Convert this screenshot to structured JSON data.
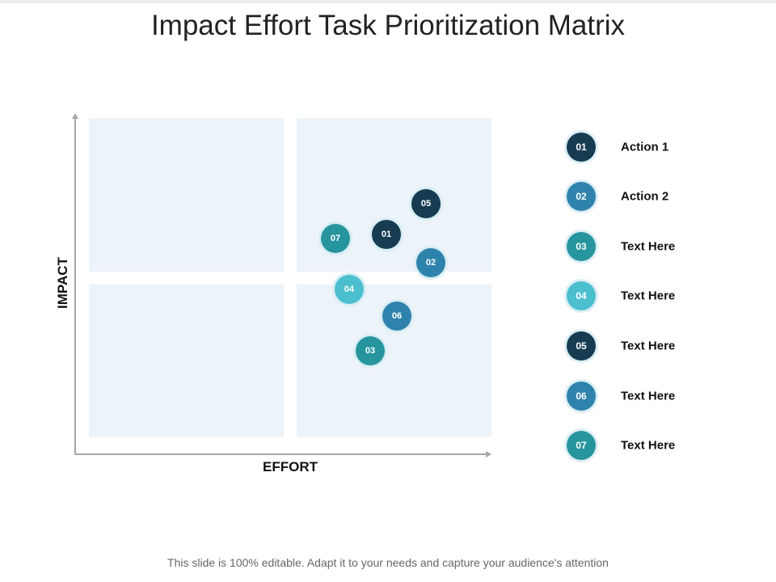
{
  "title": "Impact Effort Task Prioritization Matrix",
  "axes": {
    "y_label": "IMPACT",
    "x_label": "EFFORT"
  },
  "bubbles": [
    "05",
    "01",
    "07",
    "02",
    "04",
    "06",
    "03"
  ],
  "legend": [
    {
      "num": "01",
      "label": "Action 1"
    },
    {
      "num": "02",
      "label": "Action 2"
    },
    {
      "num": "03",
      "label": "Text Here"
    },
    {
      "num": "04",
      "label": "Text Here"
    },
    {
      "num": "05",
      "label": "Text Here"
    },
    {
      "num": "06",
      "label": "Text Here"
    },
    {
      "num": "07",
      "label": "Text Here"
    }
  ],
  "colors": {
    "dark": "#173c52",
    "blue": "#2e83ad",
    "teal": "#27959e",
    "cyan": "#4cbfcf",
    "quadrant": "#edf4f9"
  },
  "footer": "This slide is 100% editable. Adapt it to your needs and capture your audience's attention"
}
